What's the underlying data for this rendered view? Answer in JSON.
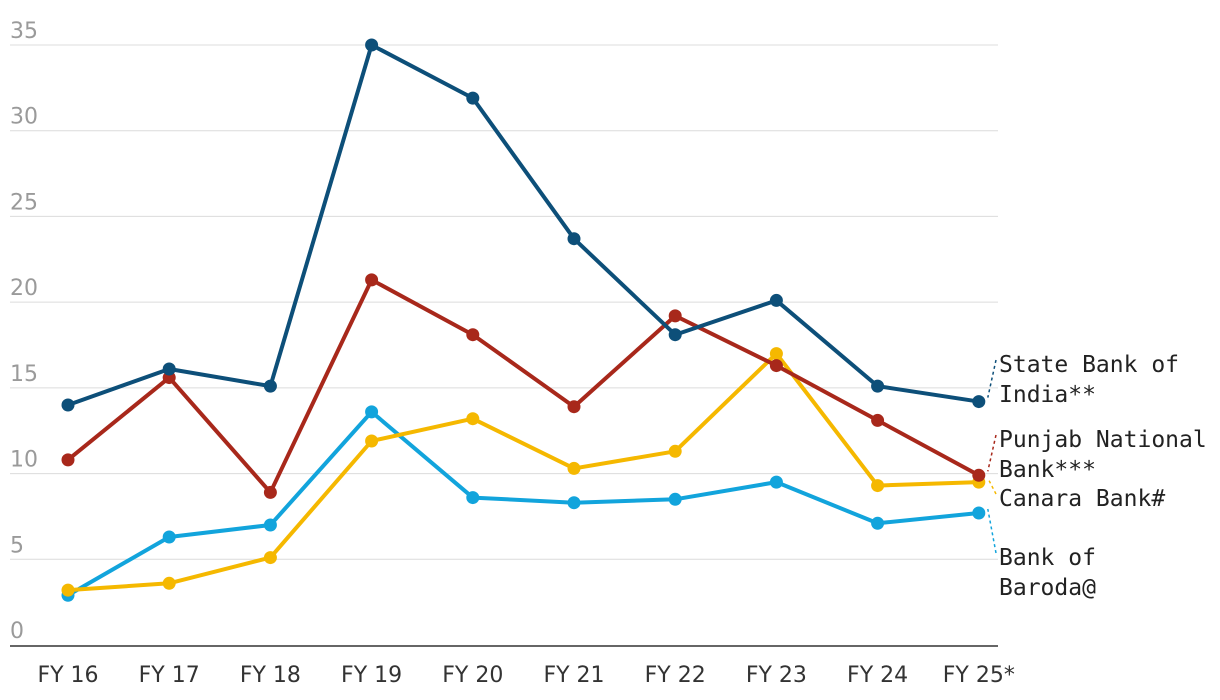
{
  "chart_data": {
    "type": "line",
    "title": "",
    "xlabel": "",
    "ylabel": "",
    "categories": [
      "FY 16",
      "FY 17",
      "FY 18",
      "FY 19",
      "FY 20",
      "FY 21",
      "FY 22",
      "FY 23",
      "FY 24",
      "FY 25*"
    ],
    "y_ticks": [
      "0",
      "5",
      "10",
      "15",
      "20",
      "25",
      "30",
      "35"
    ],
    "ylim": [
      0,
      35
    ],
    "grid": true,
    "legend": "direct labels at right end of lines",
    "series": [
      {
        "name": "State Bank of India**",
        "label_lines": [
          "State Bank of",
          "India**"
        ],
        "color": "#0d4f79",
        "values": [
          14.0,
          16.1,
          15.1,
          35.0,
          31.9,
          23.7,
          18.1,
          20.1,
          15.1,
          14.2
        ]
      },
      {
        "name": "Punjab National Bank***",
        "label_lines": [
          "Punjab National",
          "Bank***"
        ],
        "color": "#a8281b",
        "values": [
          10.8,
          15.6,
          8.9,
          21.3,
          18.1,
          13.9,
          19.2,
          16.3,
          13.1,
          9.9
        ]
      },
      {
        "name": "Canara Bank#",
        "label_lines": [
          "Canara Bank#"
        ],
        "color": "#f5b800",
        "values": [
          3.2,
          3.6,
          5.1,
          11.9,
          13.2,
          10.3,
          11.3,
          17.0,
          9.3,
          9.5
        ]
      },
      {
        "name": "Bank of Baroda@",
        "label_lines": [
          "Bank of",
          "Baroda@"
        ],
        "color": "#12a4dc",
        "values": [
          2.9,
          6.3,
          7.0,
          13.6,
          8.6,
          8.3,
          8.5,
          9.5,
          7.1,
          7.7
        ]
      }
    ]
  }
}
